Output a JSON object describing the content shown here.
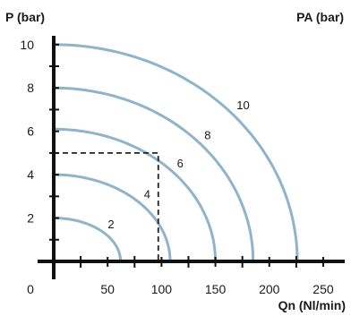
{
  "chart_data": {
    "type": "line",
    "title": "",
    "ylabel": "P (bar)",
    "xlabel": "Qn (Nl/min)",
    "corner_label": "PA (bar)",
    "origin_label": "0",
    "xlim": [
      0,
      260
    ],
    "ylim": [
      0,
      10.9
    ],
    "x_ticks": [
      50,
      100,
      150,
      200,
      250
    ],
    "x_minor_ticks": [
      25,
      75,
      125,
      175,
      225
    ],
    "y_ticks": [
      2,
      4,
      6,
      8,
      10
    ],
    "y_minor_ticks": [
      1,
      3,
      5,
      7,
      9
    ],
    "grid": false,
    "series": [
      {
        "name": "2",
        "p_max": 2,
        "q_max": 62
      },
      {
        "name": "4",
        "p_max": 4,
        "q_max": 108
      },
      {
        "name": "6",
        "p_max": 6.1,
        "q_max": 150
      },
      {
        "name": "8",
        "p_max": 8,
        "q_max": 185
      },
      {
        "name": "10",
        "p_max": 10,
        "q_max": 226
      }
    ],
    "annotation": {
      "type": "reference-lines",
      "x": 97,
      "y": 5
    },
    "colors": {
      "curve": "#8fb3c9",
      "axis": "#111111",
      "reference": "#222222"
    }
  }
}
